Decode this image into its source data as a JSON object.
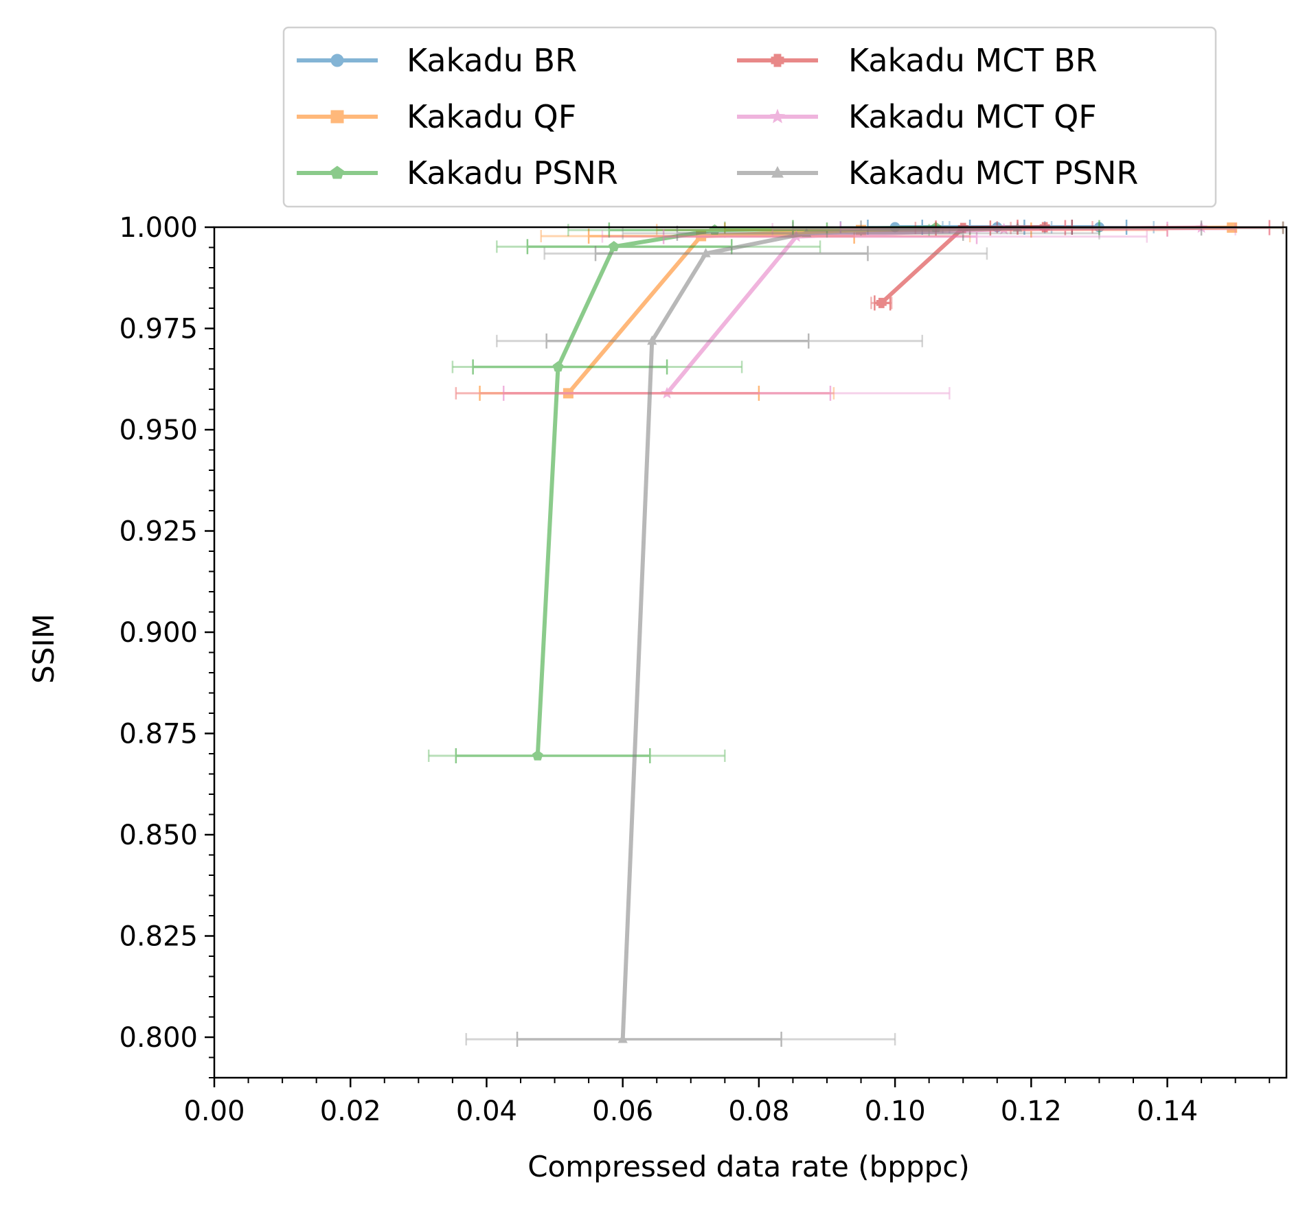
{
  "chart_data": {
    "type": "line",
    "xlabel": "Compressed data rate (bpppc)",
    "ylabel": "SSIM",
    "xlim": [
      0.0,
      0.1575
    ],
    "ylim": [
      0.79,
      1.0
    ],
    "xticks": [
      "0.00",
      "0.02",
      "0.04",
      "0.06",
      "0.08",
      "0.10",
      "0.12",
      "0.14"
    ],
    "yticks": [
      "0.800",
      "0.825",
      "0.850",
      "0.875",
      "0.900",
      "0.925",
      "0.950",
      "0.975",
      "1.000"
    ],
    "grid": false,
    "legend_position": "top",
    "series": [
      {
        "name": "Kakadu BR",
        "color": "#1f77b4",
        "marker": "circle",
        "points": [
          {
            "x": 0.1,
            "y": 1.0,
            "xerr_inner": [
              0.096,
              0.104
            ],
            "xerr_outer": [
              0.092,
              0.108
            ]
          },
          {
            "x": 0.115,
            "y": 1.0,
            "xerr_inner": [
              0.111,
              0.119
            ],
            "xerr_outer": [
              0.107,
              0.123
            ]
          },
          {
            "x": 0.13,
            "y": 1.0,
            "xerr_inner": [
              0.126,
              0.134
            ],
            "xerr_outer": [
              0.122,
              0.138
            ]
          }
        ]
      },
      {
        "name": "Kakadu QF",
        "color": "#ff7f0e",
        "marker": "square",
        "points": [
          {
            "x": 0.052,
            "y": 0.959,
            "xerr_inner": [
              0.039,
              0.08
            ],
            "xerr_outer": [
              0.0355,
              0.091
            ]
          },
          {
            "x": 0.0715,
            "y": 0.9978,
            "xerr_inner": [
              0.055,
              0.094
            ],
            "xerr_outer": [
              0.048,
              0.111
            ]
          },
          {
            "x": 0.095,
            "y": 0.9993,
            "xerr_inner": [
              0.075,
              0.12
            ],
            "xerr_outer": [
              0.065,
              0.14
            ]
          },
          {
            "x": 0.1495,
            "y": 0.9999,
            "xerr_inner": [
              0.125,
              0.155
            ],
            "xerr_outer": [
              0.118,
              0.157
            ]
          }
        ]
      },
      {
        "name": "Kakadu PSNR",
        "color": "#2ca02c",
        "marker": "pentagon",
        "points": [
          {
            "x": 0.0475,
            "y": 0.8695,
            "xerr_inner": [
              0.0355,
              0.064
            ],
            "xerr_outer": [
              0.0315,
              0.075
            ]
          },
          {
            "x": 0.0505,
            "y": 0.9655,
            "xerr_inner": [
              0.038,
              0.0665
            ],
            "xerr_outer": [
              0.035,
              0.0775
            ]
          },
          {
            "x": 0.0587,
            "y": 0.9952,
            "xerr_inner": [
              0.046,
              0.076
            ],
            "xerr_outer": [
              0.0415,
              0.089
            ]
          },
          {
            "x": 0.0735,
            "y": 0.9993,
            "xerr_inner": [
              0.058,
              0.09
            ],
            "xerr_outer": [
              0.052,
              0.105
            ]
          },
          {
            "x": 0.106,
            "y": 0.9999,
            "xerr_inner": [
              0.085,
              0.13
            ],
            "xerr_outer": [
              0.075,
              0.157
            ]
          }
        ]
      },
      {
        "name": "Kakadu MCT BR",
        "color": "#d62728",
        "marker": "plus",
        "points": [
          {
            "x": 0.098,
            "y": 0.9813,
            "xerr_inner": [
              0.097,
              0.0993
            ],
            "xerr_outer": [
              0.0965,
              0.0995
            ]
          },
          {
            "x": 0.11,
            "y": 0.9998,
            "xerr_inner": [
              0.106,
              0.114
            ],
            "xerr_outer": [
              0.103,
              0.117
            ]
          },
          {
            "x": 0.122,
            "y": 1.0,
            "xerr_inner": [
              0.118,
              0.126
            ],
            "xerr_outer": [
              0.115,
              0.129
            ]
          }
        ]
      },
      {
        "name": "Kakadu MCT QF",
        "color": "#e377c2",
        "marker": "star",
        "points": [
          {
            "x": 0.0665,
            "y": 0.959,
            "xerr_inner": [
              0.0425,
              0.0905
            ],
            "xerr_outer": [
              0.0355,
              0.108
            ]
          },
          {
            "x": 0.0855,
            "y": 0.9977,
            "xerr_inner": [
              0.066,
              0.112
            ],
            "xerr_outer": [
              0.057,
              0.137
            ]
          },
          {
            "x": 0.116,
            "y": 0.9995,
            "xerr_inner": [
              0.092,
              0.14
            ],
            "xerr_outer": [
              0.082,
              0.15
            ]
          },
          {
            "x": 0.145,
            "y": 0.9999,
            "xerr_inner": [
              0.125,
              0.155
            ],
            "xerr_outer": [
              0.118,
              0.157
            ]
          }
        ]
      },
      {
        "name": "Kakadu MCT PSNR",
        "color": "#7f7f7f",
        "marker": "triangle",
        "points": [
          {
            "x": 0.06,
            "y": 0.7995,
            "xerr_inner": [
              0.0445,
              0.0833
            ],
            "xerr_outer": [
              0.037,
              0.1
            ]
          },
          {
            "x": 0.0643,
            "y": 0.9719,
            "xerr_inner": [
              0.0488,
              0.0873
            ],
            "xerr_outer": [
              0.0415,
              0.104
            ]
          },
          {
            "x": 0.0722,
            "y": 0.9935,
            "xerr_inner": [
              0.056,
              0.096
            ],
            "xerr_outer": [
              0.0485,
              0.1135
            ]
          },
          {
            "x": 0.087,
            "y": 0.9985,
            "xerr_inner": [
              0.068,
              0.11
            ],
            "xerr_outer": [
              0.06,
              0.13
            ]
          },
          {
            "x": 0.118,
            "y": 0.9998,
            "xerr_inner": [
              0.095,
              0.145
            ],
            "xerr_outer": [
              0.085,
              0.157
            ]
          }
        ]
      }
    ]
  }
}
